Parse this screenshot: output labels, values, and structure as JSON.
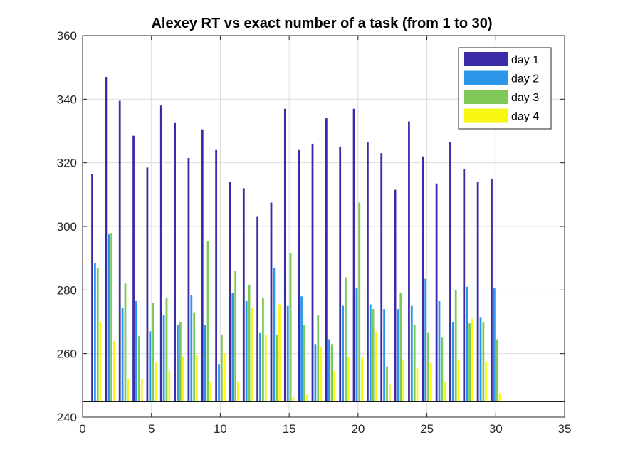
{
  "chart_data": {
    "type": "bar",
    "title": "Alexey RT vs exact number of a task (from 1 to 30)",
    "xlabel": "",
    "ylabel": "",
    "xlim": [
      0,
      35
    ],
    "ylim": [
      240,
      360
    ],
    "xticks": [
      0,
      5,
      10,
      15,
      20,
      25,
      30,
      35
    ],
    "yticks": [
      240,
      260,
      280,
      300,
      320,
      340,
      360
    ],
    "baseline": 245,
    "grid": true,
    "legend": "top-right",
    "x": [
      1,
      2,
      3,
      4,
      5,
      6,
      7,
      8,
      9,
      10,
      11,
      12,
      13,
      14,
      15,
      16,
      17,
      18,
      19,
      20,
      21,
      22,
      23,
      24,
      25,
      26,
      27,
      28,
      29,
      30
    ],
    "series": [
      {
        "name": "day 1",
        "color": "#3b2ba8",
        "values": [
          316.5,
          347,
          339.5,
          328.5,
          318.5,
          338,
          332.5,
          321.5,
          330.5,
          324,
          314,
          312,
          303,
          307.5,
          337,
          324,
          326,
          334,
          325,
          337,
          326.5,
          323,
          311.5,
          333,
          322,
          313.5,
          326.5,
          318,
          314,
          315
        ]
      },
      {
        "name": "day 2",
        "color": "#2b96e8",
        "values": [
          288.5,
          297.5,
          274.5,
          276.5,
          267,
          272,
          269,
          278.5,
          269,
          256.5,
          279,
          276.5,
          266.5,
          287,
          275,
          278,
          263,
          264.5,
          275,
          280.5,
          275.5,
          274,
          274,
          275,
          283.5,
          276.5,
          270,
          281,
          271.5,
          280.5
        ]
      },
      {
        "name": "day 3",
        "color": "#7dc856",
        "values": [
          287,
          298,
          282,
          265.5,
          276,
          277.5,
          270,
          273,
          295.5,
          266,
          286,
          281.5,
          277.5,
          266,
          291.5,
          269,
          272,
          263,
          284,
          307.5,
          274,
          256,
          279,
          269,
          266.5,
          265,
          280,
          269.5,
          270,
          264.5
        ]
      },
      {
        "name": "day 4",
        "color": "#f7f711",
        "values": [
          270,
          264,
          252,
          252,
          257.5,
          254.5,
          259,
          259.5,
          251,
          260,
          251,
          274.5,
          266,
          275.5,
          246.5,
          247,
          262,
          254.5,
          259,
          259,
          267,
          250.5,
          258,
          255.5,
          257,
          251,
          258,
          271,
          257.5,
          247.5
        ]
      }
    ]
  }
}
